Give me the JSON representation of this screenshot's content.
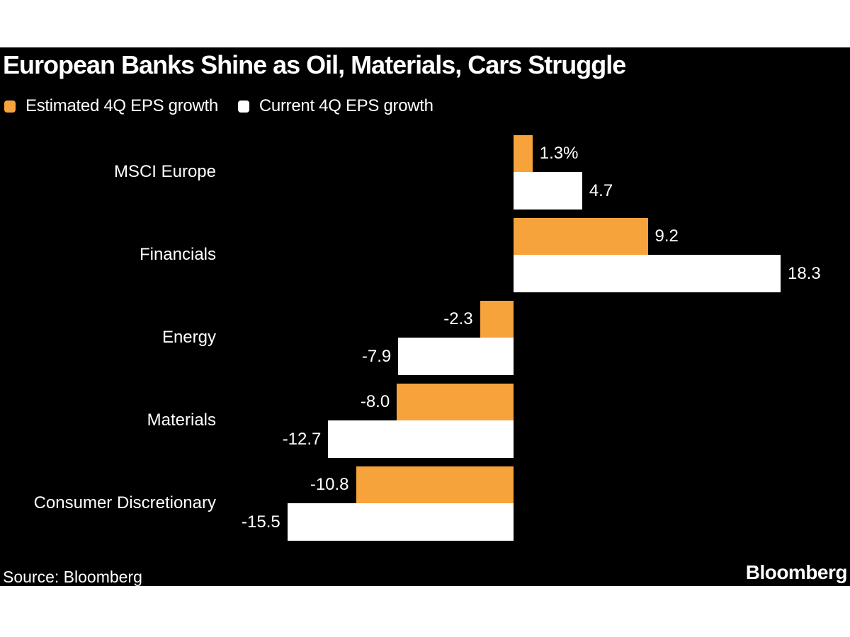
{
  "title": "European Banks Shine as Oil, Materials, Cars Struggle",
  "legend": {
    "items": [
      {
        "label": "Estimated 4Q EPS growth",
        "color": "#F7A33B"
      },
      {
        "label": "Current 4Q EPS growth",
        "color": "#FFFFFF"
      }
    ]
  },
  "chart_data": {
    "type": "bar",
    "orientation": "horizontal",
    "title": "European Banks Shine as Oil, Materials, Cars Struggle",
    "categories": [
      "MSCI Europe",
      "Financials",
      "Energy",
      "Materials",
      "Consumer Discretionary"
    ],
    "series": [
      {
        "name": "Estimated 4Q EPS growth",
        "color": "#F7A33B",
        "values": [
          1.3,
          9.2,
          -2.3,
          -8.0,
          -10.8
        ],
        "labels": [
          "1.3%",
          "9.2",
          "-2.3",
          "-8.0",
          "-10.8"
        ]
      },
      {
        "name": "Current 4Q EPS growth",
        "color": "#FFFFFF",
        "values": [
          4.7,
          18.3,
          -7.9,
          -12.7,
          -15.5
        ],
        "labels": [
          "4.7",
          "18.3",
          "-7.9",
          "-12.7",
          "-15.5"
        ]
      }
    ],
    "xlim": [
      -16,
      19
    ],
    "baseline": 0,
    "grid": false,
    "axis_labels_visible": false,
    "legend_position": "top-left",
    "value_labels": "at-bar-ends"
  },
  "footer": {
    "source_label": "Source: Bloomberg",
    "brand": "Bloomberg"
  },
  "colors": {
    "page_background": "#FFFFFF",
    "chart_background": "#000000",
    "text": "#FFFFFF",
    "estimated_series": "#F7A33B",
    "current_series": "#FFFFFF"
  }
}
